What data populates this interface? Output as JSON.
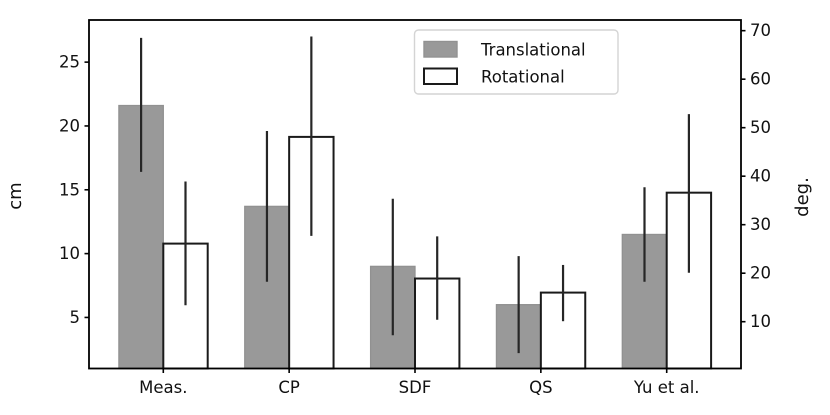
{
  "figure": {
    "background": "#ffffff"
  },
  "chart_data": {
    "type": "bar",
    "title": "",
    "categories": [
      "Meas.",
      "CP",
      "SDF",
      "QS",
      "Yu et al."
    ],
    "series": [
      {
        "name": "Translational",
        "axis": "left",
        "unit": "cm",
        "fill": "#999999",
        "edge": "#919191",
        "values": [
          21.6,
          13.7,
          9.0,
          6.0,
          11.5
        ],
        "err_low": [
          16.4,
          7.8,
          3.6,
          2.2,
          7.8
        ],
        "err_high": [
          26.9,
          19.6,
          14.3,
          9.8,
          15.2
        ]
      },
      {
        "name": "Rotational",
        "axis": "right",
        "unit": "deg.",
        "fill": "#ffffff",
        "edge": "#1a1a1a",
        "values": [
          26.1,
          48.1,
          18.9,
          16.0,
          36.6
        ],
        "err_low": [
          13.4,
          27.7,
          10.4,
          10.1,
          20.1
        ],
        "err_high": [
          38.9,
          68.8,
          27.6,
          21.7,
          52.8
        ]
      }
    ],
    "left_axis": {
      "label": "cm",
      "ticks": [
        5,
        10,
        15,
        20,
        25
      ],
      "range": [
        1.0,
        28.3
      ]
    },
    "right_axis": {
      "label": "deg.",
      "ticks": [
        10,
        20,
        30,
        40,
        50,
        60,
        70
      ],
      "range": [
        0.35,
        72.2
      ]
    },
    "legend": {
      "position": "top-center",
      "entries": [
        "Translational",
        "Rotational"
      ]
    },
    "error_color": "#262626",
    "spine_color": "#000000",
    "grid": false
  }
}
